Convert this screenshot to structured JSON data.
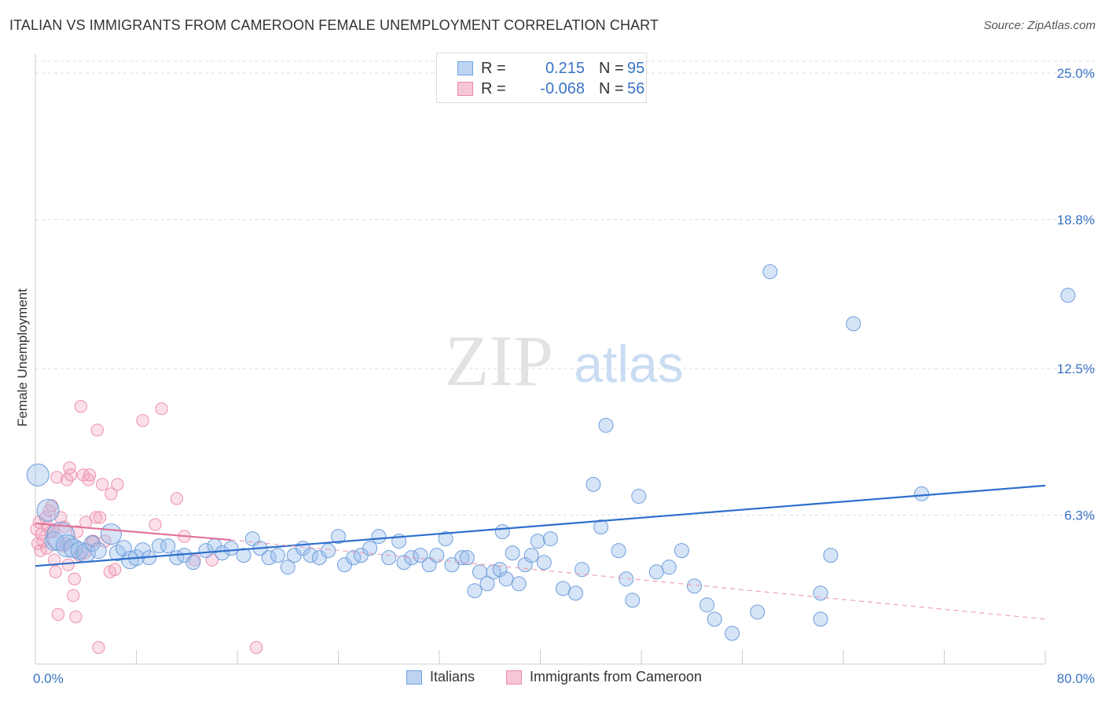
{
  "header": {
    "title": "ITALIAN VS IMMIGRANTS FROM CAMEROON FEMALE UNEMPLOYMENT CORRELATION CHART",
    "source": "Source: ZipAtlas.com"
  },
  "watermark": {
    "zip": "ZIP",
    "atlas": "atlas"
  },
  "legend_top": {
    "rows": [
      {
        "r_label": "R =",
        "r_value": "0.215",
        "n_label": "N =",
        "n_value": "95"
      },
      {
        "r_label": "R =",
        "r_value": "-0.068",
        "n_label": "N =",
        "n_value": "56"
      }
    ]
  },
  "legend_bottom": {
    "series1": "Italians",
    "series2": "Immigrants from Cameroon"
  },
  "chart_data": {
    "type": "scatter",
    "title": "ITALIAN VS IMMIGRANTS FROM CAMEROON FEMALE UNEMPLOYMENT CORRELATION CHART",
    "xlabel": "",
    "ylabel": "Female Unemployment",
    "xlim": [
      0,
      80
    ],
    "ylim": [
      0,
      25.5
    ],
    "x_tick_labels": [
      "0.0%",
      "80.0%"
    ],
    "y_ticks": [
      6.3,
      12.5,
      18.8,
      25.0
    ],
    "y_tick_labels": [
      "6.3%",
      "12.5%",
      "18.8%",
      "25.0%"
    ],
    "grid": true,
    "colors": {
      "italians": "#7aa6e0",
      "cameroon": "#ee90ad",
      "italians_line": "#2d6fcc",
      "cameroon_line": "#e0739a"
    },
    "series": [
      {
        "name": "Italians",
        "R": 0.215,
        "N": 95,
        "trend": {
          "x": [
            0,
            80
          ],
          "y": [
            4.15,
            7.55
          ]
        },
        "points": [
          [
            0.2,
            8.0,
            14
          ],
          [
            1.0,
            6.5,
            14
          ],
          [
            1.5,
            5.2,
            12
          ],
          [
            2.0,
            5.4,
            18
          ],
          [
            2.5,
            5.0,
            14
          ],
          [
            3.0,
            4.9,
            12
          ],
          [
            3.5,
            4.8,
            11
          ],
          [
            4.0,
            4.7,
            12
          ],
          [
            4.5,
            5.1,
            10
          ],
          [
            5.0,
            4.8,
            10
          ],
          [
            6.0,
            5.5,
            13
          ],
          [
            6.5,
            4.7,
            10
          ],
          [
            7.0,
            4.9,
            10
          ],
          [
            7.5,
            4.4,
            11
          ],
          [
            8.0,
            4.5,
            10
          ],
          [
            8.5,
            4.8,
            10
          ],
          [
            9.0,
            4.5,
            9
          ],
          [
            9.8,
            5.0,
            9
          ],
          [
            10.5,
            5.0,
            9
          ],
          [
            11.2,
            4.5,
            9
          ],
          [
            11.8,
            4.6,
            9
          ],
          [
            12.5,
            4.3,
            9
          ],
          [
            13.5,
            4.8,
            9
          ],
          [
            14.2,
            5.0,
            9
          ],
          [
            14.8,
            4.7,
            9
          ],
          [
            15.5,
            4.9,
            9
          ],
          [
            16.5,
            4.6,
            9
          ],
          [
            17.2,
            5.3,
            9
          ],
          [
            17.8,
            4.9,
            9
          ],
          [
            18.5,
            4.5,
            9
          ],
          [
            19.2,
            4.6,
            9
          ],
          [
            20.0,
            4.1,
            9
          ],
          [
            20.5,
            4.6,
            9
          ],
          [
            21.2,
            4.9,
            9
          ],
          [
            21.8,
            4.6,
            9
          ],
          [
            22.5,
            4.5,
            9
          ],
          [
            23.2,
            4.8,
            9
          ],
          [
            24.0,
            5.4,
            9
          ],
          [
            24.5,
            4.2,
            9
          ],
          [
            25.2,
            4.5,
            9
          ],
          [
            25.8,
            4.6,
            9
          ],
          [
            26.5,
            4.9,
            9
          ],
          [
            27.2,
            5.4,
            9
          ],
          [
            28.0,
            4.5,
            9
          ],
          [
            28.8,
            5.2,
            9
          ],
          [
            29.2,
            4.3,
            9
          ],
          [
            29.8,
            4.5,
            9
          ],
          [
            30.5,
            4.6,
            9
          ],
          [
            31.2,
            4.2,
            9
          ],
          [
            31.8,
            4.6,
            9
          ],
          [
            32.5,
            5.3,
            9
          ],
          [
            33.0,
            4.2,
            9
          ],
          [
            33.8,
            4.5,
            9
          ],
          [
            34.2,
            4.5,
            9
          ],
          [
            34.8,
            3.1,
            9
          ],
          [
            35.2,
            3.9,
            9
          ],
          [
            35.8,
            3.4,
            9
          ],
          [
            36.3,
            3.9,
            9
          ],
          [
            36.8,
            4.0,
            9
          ],
          [
            37.3,
            3.6,
            9
          ],
          [
            37.8,
            4.7,
            9
          ],
          [
            38.3,
            3.4,
            9
          ],
          [
            38.8,
            4.2,
            9
          ],
          [
            39.3,
            4.6,
            9
          ],
          [
            39.8,
            5.2,
            9
          ],
          [
            40.3,
            4.3,
            9
          ],
          [
            40.8,
            5.3,
            9
          ],
          [
            41.8,
            3.2,
            9
          ],
          [
            42.8,
            3.0,
            9
          ],
          [
            43.3,
            4.0,
            9
          ],
          [
            44.2,
            7.6,
            9
          ],
          [
            45.2,
            10.1,
            9
          ],
          [
            46.2,
            4.8,
            9
          ],
          [
            46.8,
            3.6,
            9
          ],
          [
            47.3,
            2.7,
            9
          ],
          [
            47.8,
            7.1,
            9
          ],
          [
            49.2,
            3.9,
            9
          ],
          [
            50.2,
            4.1,
            9
          ],
          [
            51.2,
            4.8,
            9
          ],
          [
            52.2,
            3.3,
            9
          ],
          [
            53.2,
            2.5,
            9
          ],
          [
            53.8,
            1.9,
            9
          ],
          [
            55.2,
            1.3,
            9
          ],
          [
            57.2,
            2.2,
            9
          ],
          [
            58.2,
            16.6,
            9
          ],
          [
            62.2,
            1.9,
            9
          ],
          [
            62.2,
            3.0,
            9
          ],
          [
            64.8,
            14.4,
            9
          ],
          [
            70.2,
            7.2,
            9
          ],
          [
            63.0,
            4.6,
            9
          ],
          [
            37.0,
            5.6,
            9
          ],
          [
            44.8,
            5.8,
            9
          ],
          [
            81.8,
            15.6,
            9
          ]
        ]
      },
      {
        "name": "Immigrants from Cameroon",
        "R": -0.068,
        "N": 56,
        "trend": {
          "x": [
            0,
            15.5
          ],
          "y": [
            5.95,
            5.25
          ]
        },
        "trend_dashed": {
          "x": [
            15.5,
            80
          ],
          "y": [
            5.25,
            1.9
          ]
        },
        "points": [
          [
            0.1,
            5.7,
            9
          ],
          [
            0.2,
            5.1,
            9
          ],
          [
            0.3,
            6.0,
            9
          ],
          [
            0.4,
            4.8,
            9
          ],
          [
            0.5,
            5.5,
            9
          ],
          [
            0.6,
            5.2,
            9
          ],
          [
            0.8,
            6.2,
            9
          ],
          [
            1.0,
            5.8,
            9
          ],
          [
            1.1,
            6.5,
            9
          ],
          [
            1.3,
            6.7,
            9
          ],
          [
            1.4,
            5.6,
            9
          ],
          [
            1.5,
            4.4,
            9
          ],
          [
            1.6,
            3.9,
            9
          ],
          [
            1.7,
            7.9,
            9
          ],
          [
            1.8,
            2.1,
            9
          ],
          [
            2.0,
            6.2,
            9
          ],
          [
            2.2,
            5.0,
            9
          ],
          [
            2.3,
            5.8,
            9
          ],
          [
            2.5,
            7.8,
            9
          ],
          [
            2.6,
            4.2,
            9
          ],
          [
            2.7,
            8.3,
            9
          ],
          [
            2.8,
            8.0,
            9
          ],
          [
            3.0,
            2.9,
            9
          ],
          [
            3.1,
            3.6,
            9
          ],
          [
            3.2,
            2.0,
            9
          ],
          [
            3.3,
            5.6,
            9
          ],
          [
            3.5,
            4.6,
            9
          ],
          [
            3.6,
            10.9,
            9
          ],
          [
            3.8,
            8.0,
            9
          ],
          [
            4.0,
            6.0,
            9
          ],
          [
            4.2,
            7.8,
            9
          ],
          [
            4.3,
            8.0,
            9
          ],
          [
            4.5,
            5.2,
            9
          ],
          [
            4.6,
            5.2,
            9
          ],
          [
            4.8,
            6.2,
            9
          ],
          [
            4.9,
            9.9,
            9
          ],
          [
            5.0,
            0.7,
            9
          ],
          [
            5.3,
            7.6,
            9
          ],
          [
            5.5,
            5.2,
            9
          ],
          [
            5.9,
            3.9,
            9
          ],
          [
            6.0,
            7.2,
            9
          ],
          [
            6.3,
            4.0,
            9
          ],
          [
            6.5,
            7.6,
            9
          ],
          [
            8.5,
            10.3,
            9
          ],
          [
            9.5,
            5.9,
            9
          ],
          [
            10.0,
            10.8,
            9
          ],
          [
            11.2,
            7.0,
            9
          ],
          [
            11.8,
            5.4,
            9
          ],
          [
            12.6,
            4.4,
            9
          ],
          [
            14.0,
            4.4,
            9
          ],
          [
            17.5,
            0.7,
            9
          ],
          [
            1.2,
            5.6,
            9
          ],
          [
            0.9,
            4.9,
            9
          ],
          [
            2.4,
            5.1,
            9
          ],
          [
            3.9,
            4.7,
            9
          ],
          [
            5.1,
            6.2,
            9
          ]
        ]
      }
    ]
  }
}
